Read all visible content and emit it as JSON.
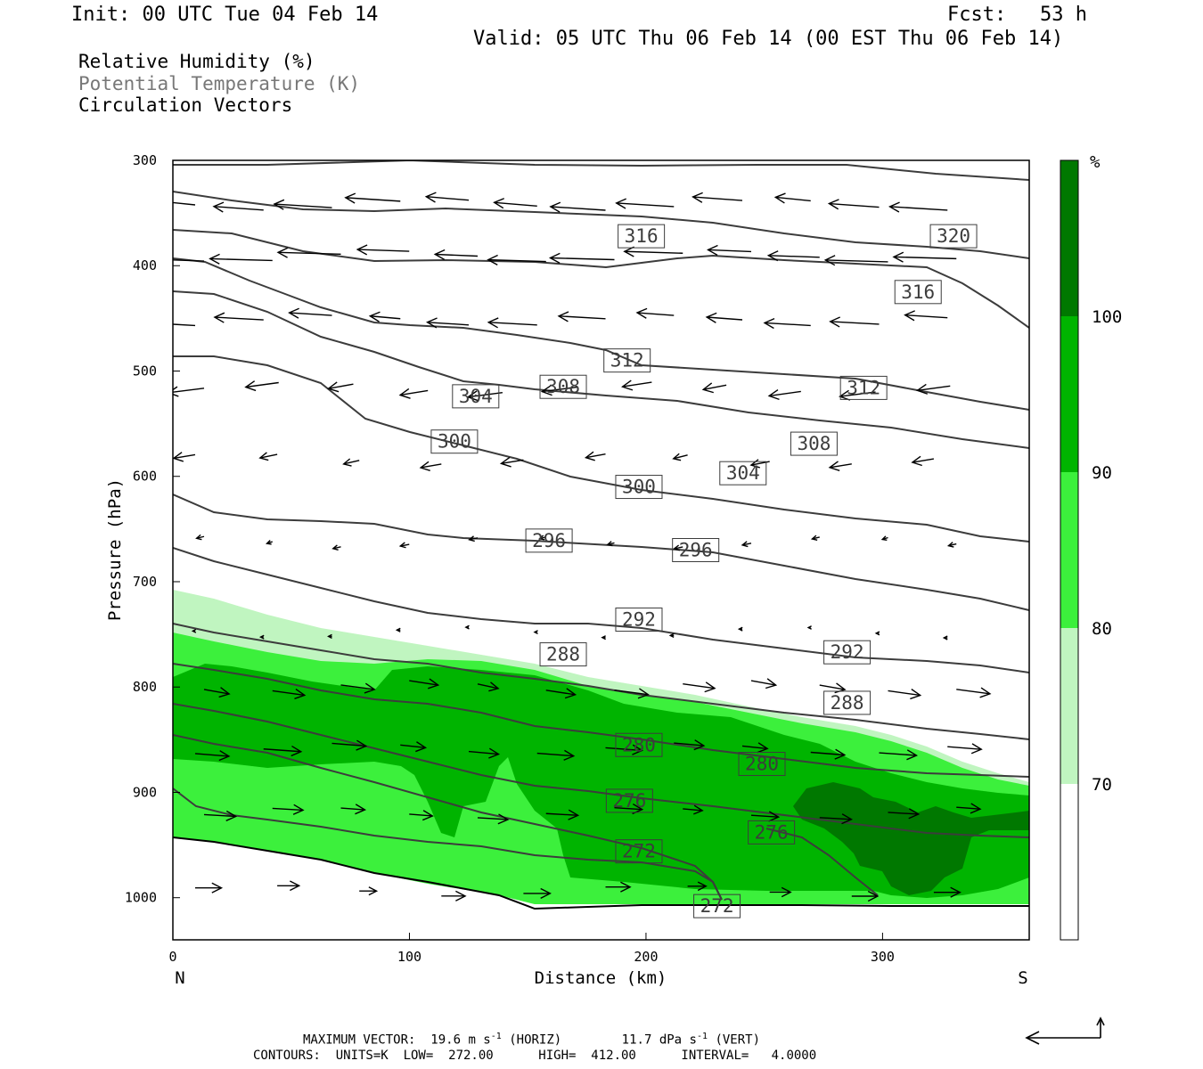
{
  "header": {
    "init": "Init: 00 UTC Tue 04 Feb 14",
    "fcst_label": "Fcst:",
    "fcst_value": "53 h",
    "valid": "Valid: 05 UTC Thu 06 Feb 14 (00 EST Thu 06 Feb 14)"
  },
  "legend": {
    "rh": "Relative Humidity (%)",
    "theta": "Potential Temperature (K)",
    "vectors": "Circulation Vectors"
  },
  "footer": {
    "max_vector_label": "MAXIMUM VECTOR:",
    "horiz_value": "19.6 m s",
    "horiz_exp": "-1",
    "horiz_tag": "(HORIZ)",
    "vert_value": "11.7 dPa s",
    "vert_exp": "-1",
    "vert_tag": "(VERT)",
    "contours": "CONTOURS:  UNITS=K  LOW=  272.00      HIGH=  412.00      INTERVAL=   4.0000"
  },
  "colors": {
    "rh70": "#c0f5c0",
    "rh80": "#3cf03c",
    "rh90": "#00b400",
    "rh100": "#007800",
    "contour": "#3c3c3c",
    "vector": "#000000"
  },
  "chart_data": {
    "type": "cross-section",
    "xlabel": "Distance (km)",
    "ylabel": "Pressure (hPa)",
    "xlim": [
      0,
      362
    ],
    "ylim": [
      1040,
      300
    ],
    "x_ticks": [
      "0",
      "100",
      "200",
      "300"
    ],
    "y_ticks": [
      "300",
      "400",
      "500",
      "600",
      "700",
      "800",
      "900",
      "1000"
    ],
    "x_end_labels": {
      "left": "N",
      "right": "S"
    },
    "colorbar": {
      "unit": "%",
      "levels": [
        "70",
        "80",
        "90",
        "100"
      ]
    },
    "contour_labels": [
      {
        "value": "316",
        "x": 198,
        "p": 372
      },
      {
        "value": "320",
        "x": 330,
        "p": 372
      },
      {
        "value": "316",
        "x": 315,
        "p": 425
      },
      {
        "value": "312",
        "x": 192,
        "p": 490
      },
      {
        "value": "312",
        "x": 292,
        "p": 516
      },
      {
        "value": "308",
        "x": 165,
        "p": 515
      },
      {
        "value": "304",
        "x": 128,
        "p": 524
      },
      {
        "value": "300",
        "x": 119,
        "p": 567
      },
      {
        "value": "308",
        "x": 271,
        "p": 569
      },
      {
        "value": "304",
        "x": 241,
        "p": 597
      },
      {
        "value": "300",
        "x": 197,
        "p": 610
      },
      {
        "value": "296",
        "x": 159,
        "p": 661
      },
      {
        "value": "296",
        "x": 221,
        "p": 670
      },
      {
        "value": "292",
        "x": 197,
        "p": 736
      },
      {
        "value": "292",
        "x": 285,
        "p": 767
      },
      {
        "value": "288",
        "x": 165,
        "p": 769
      },
      {
        "value": "288",
        "x": 285,
        "p": 815
      },
      {
        "value": "280",
        "x": 197,
        "p": 855
      },
      {
        "value": "280",
        "x": 249,
        "p": 873
      },
      {
        "value": "276",
        "x": 193,
        "p": 908
      },
      {
        "value": "276",
        "x": 253,
        "p": 938
      },
      {
        "value": "272",
        "x": 197,
        "p": 956
      },
      {
        "value": "272",
        "x": 230,
        "p": 1008
      }
    ]
  }
}
